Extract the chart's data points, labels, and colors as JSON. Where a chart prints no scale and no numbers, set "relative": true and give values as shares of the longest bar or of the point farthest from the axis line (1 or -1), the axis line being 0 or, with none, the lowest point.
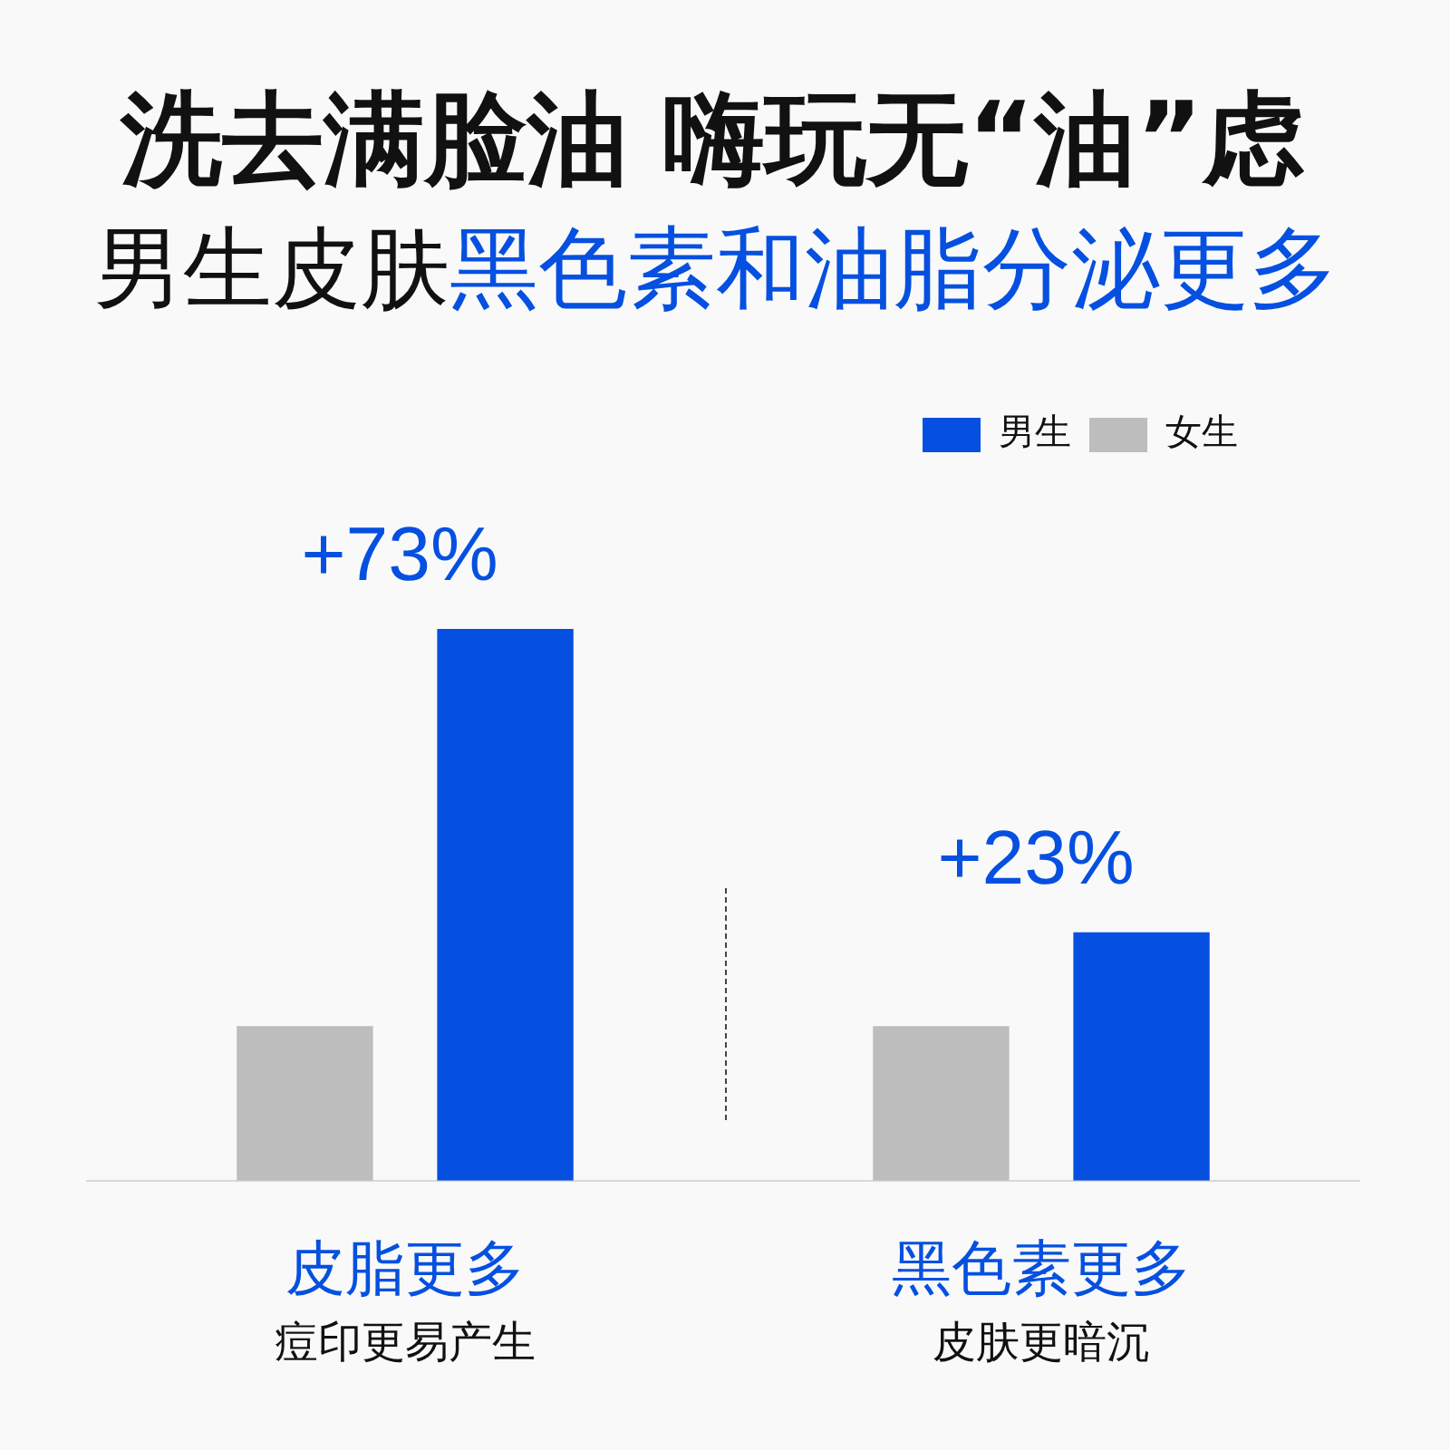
{
  "chart_data": {
    "type": "bar",
    "title": "洗去满脸油 嗨玩无“油”虑",
    "subtitle": "男生皮肤黑色素和油脂分泌更多",
    "categories": [
      "皮脂更多",
      "黑色素更多"
    ],
    "series": [
      {
        "name": "女生",
        "color": "#bdbdbd",
        "values": [
          0.28,
          0.28
        ]
      },
      {
        "name": "男生",
        "color": "#0550e0",
        "values": [
          1,
          0.45
        ]
      }
    ],
    "relative": true,
    "legend": "top right",
    "grid": false,
    "annotations": [
      "+73%",
      "+23%",
      "痘印更易产生",
      "皮肤更暗沉"
    ]
  }
}
